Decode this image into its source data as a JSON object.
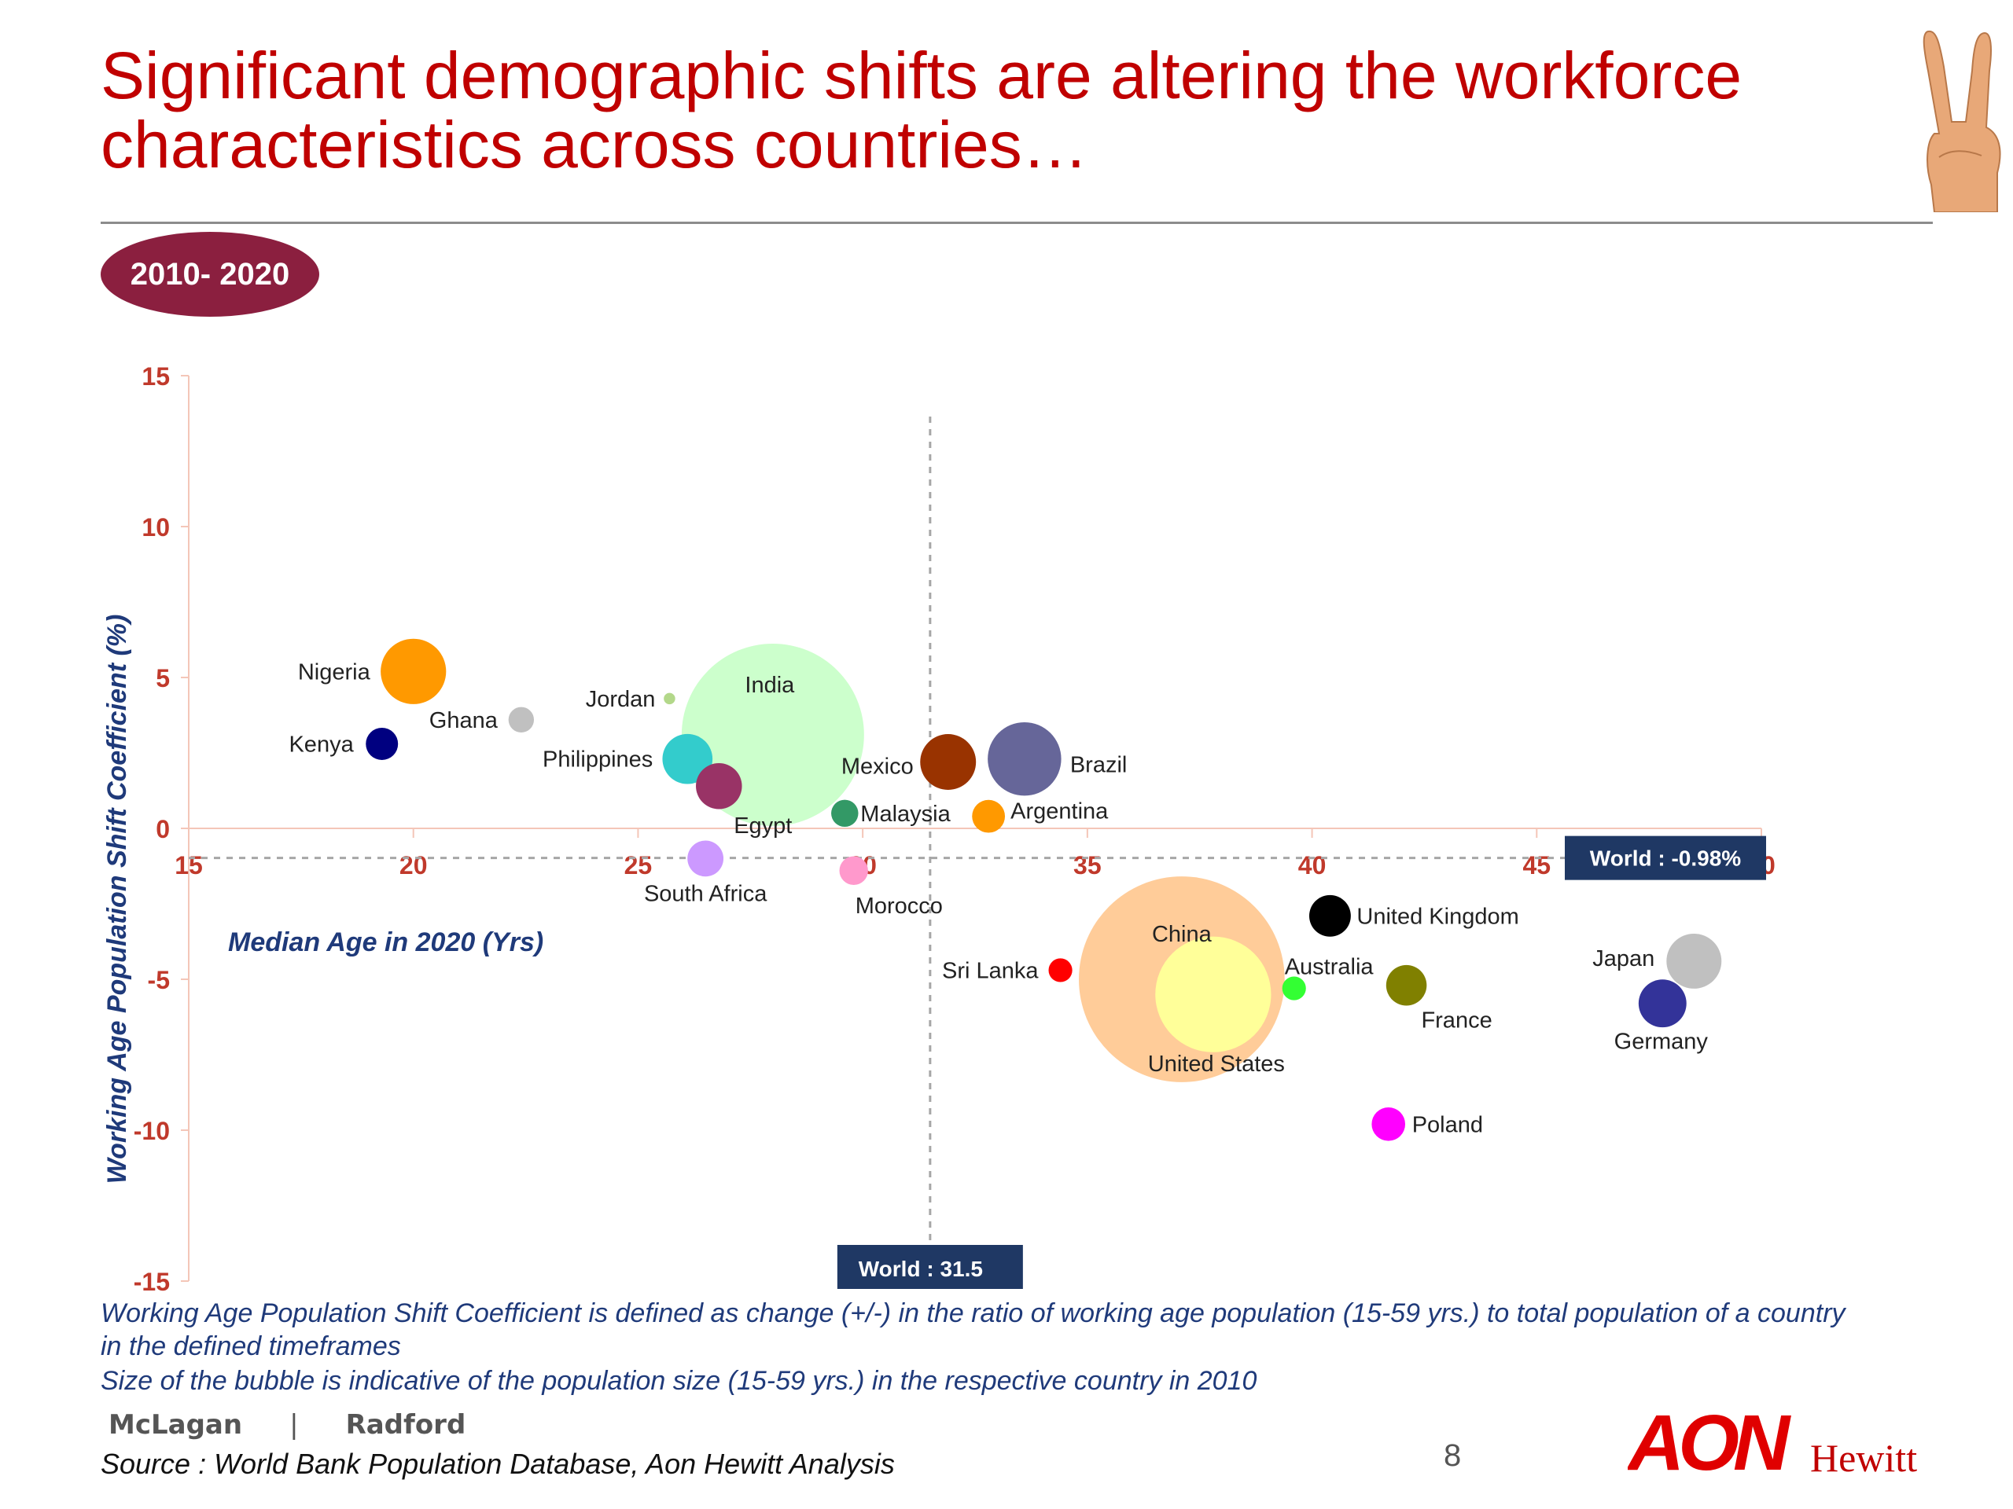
{
  "slide": {
    "title_line1": "Significant demographic shifts are altering the workforce",
    "title_line2": "characteristics across countries…",
    "period_badge": "2010- 2020",
    "note_line1": "Working Age Population Shift Coefficient is defined as change (+/-) in the ratio of working age population (15-59 yrs.) to total population of a country",
    "note_line2": "in the defined timeframes",
    "note_line3": "Size of the bubble is indicative of the population size (15-59 yrs.) in the respective country in 2010",
    "brand_left": "McLagan",
    "brand_separator": "|",
    "brand_right": "Radford",
    "source": "Source : World Bank Population Database, Aon Hewitt Analysis",
    "page_number": "8",
    "logo_main": "AON",
    "logo_sub": "Hewitt",
    "icon": "hand-peace-icon"
  },
  "colors": {
    "title": "#c00000",
    "badge": "#8b1f3f",
    "axis_tick": "#c0392b",
    "axis_title": "#1f3a7a",
    "reference_box": "#1f3864"
  },
  "chart_data": {
    "type": "bubble",
    "xlabel": "Median Age in 2020 (Yrs)",
    "ylabel": "Working Age Population Shift Coefficient (%)",
    "xlim": [
      15,
      50
    ],
    "ylim": [
      -15,
      15
    ],
    "xticks": [
      "15",
      "20",
      "25",
      "30",
      "35",
      "40",
      "45",
      "50"
    ],
    "yticks": [
      "15",
      "10",
      "5",
      "0",
      "-5",
      "-10",
      "-15"
    ],
    "reference_lines": [
      {
        "axis": "x",
        "value": 31.5,
        "label": "World : 31.5"
      },
      {
        "axis": "y",
        "value": -0.98,
        "label": "World : -0.98%"
      }
    ],
    "points": [
      {
        "label": "India",
        "x": 28.0,
        "y": 3.1,
        "size": 770,
        "color": "#ccffcc",
        "label_dx": -4,
        "label_dy": -64,
        "anchor": "middle"
      },
      {
        "label": "China",
        "x": 37.1,
        "y": -5.0,
        "size": 980,
        "color": "#ffcc99",
        "label_dx": 0,
        "label_dy": -58,
        "anchor": "middle"
      },
      {
        "label": "United States",
        "x": 37.8,
        "y": -5.5,
        "size": 310,
        "color": "#ffff99",
        "label_dx": 4,
        "label_dy": 88,
        "anchor": "middle"
      },
      {
        "label": "Nigeria",
        "x": 20.0,
        "y": 5.2,
        "size": 99,
        "color": "#ff9900",
        "label_dx": -55,
        "label_dy": 0,
        "anchor": "end"
      },
      {
        "label": "Ghana",
        "x": 22.4,
        "y": 3.6,
        "size": 15,
        "color": "#c0c0c0",
        "label_dx": -30,
        "label_dy": 0,
        "anchor": "end"
      },
      {
        "label": "Kenya",
        "x": 19.3,
        "y": 2.8,
        "size": 24,
        "color": "#000080",
        "label_dx": -36,
        "label_dy": 0,
        "anchor": "end"
      },
      {
        "label": "Jordan",
        "x": 25.7,
        "y": 4.3,
        "size": 3,
        "color": "#b3d88a",
        "label_dx": -18,
        "label_dy": 0,
        "anchor": "end"
      },
      {
        "label": "Philippines",
        "x": 26.1,
        "y": 2.3,
        "size": 58,
        "color": "#33cccc",
        "label_dx": -44,
        "label_dy": 0,
        "anchor": "end"
      },
      {
        "label": "Egypt",
        "x": 26.8,
        "y": 1.4,
        "size": 49,
        "color": "#993366",
        "label_dx": 56,
        "label_dy": 50,
        "anchor": "middle"
      },
      {
        "label": "South Africa",
        "x": 26.5,
        "y": -1.0,
        "size": 30,
        "color": "#cc99ff",
        "label_dx": 0,
        "label_dy": 44,
        "anchor": "middle"
      },
      {
        "label": "Mexico",
        "x": 31.9,
        "y": 2.2,
        "size": 72,
        "color": "#993300",
        "label_dx": -44,
        "label_dy": 5,
        "anchor": "end"
      },
      {
        "label": "Brazil",
        "x": 33.6,
        "y": 2.3,
        "size": 125,
        "color": "#666699",
        "label_dx": 58,
        "label_dy": 7,
        "anchor": "start"
      },
      {
        "label": "Malaysia",
        "x": 29.6,
        "y": 0.5,
        "size": 17,
        "color": "#339966",
        "label_dx": 20,
        "label_dy": 0,
        "anchor": "start"
      },
      {
        "label": "Argentina",
        "x": 32.8,
        "y": 0.4,
        "size": 25,
        "color": "#ff9900",
        "label_dx": 28,
        "label_dy": -7,
        "anchor": "start"
      },
      {
        "label": "Morocco",
        "x": 29.8,
        "y": -1.4,
        "size": 19,
        "color": "#ff99cc",
        "label_dx": 2,
        "label_dy": 44,
        "anchor": "start"
      },
      {
        "label": "Sri Lanka",
        "x": 34.4,
        "y": -4.7,
        "size": 13,
        "color": "#ff0000",
        "label_dx": -28,
        "label_dy": 0,
        "anchor": "end"
      },
      {
        "label": "Australia",
        "x": 39.6,
        "y": -5.3,
        "size": 13,
        "color": "#33ff33",
        "label_dx": -12,
        "label_dy": -28,
        "anchor": "start"
      },
      {
        "label": "United Kingdom",
        "x": 40.4,
        "y": -2.9,
        "size": 40,
        "color": "#000000",
        "label_dx": 34,
        "label_dy": 0,
        "anchor": "start"
      },
      {
        "label": "France",
        "x": 42.1,
        "y": -5.2,
        "size": 38,
        "color": "#808000",
        "label_dx": 64,
        "label_dy": 44,
        "anchor": "middle"
      },
      {
        "label": "Poland",
        "x": 41.7,
        "y": -9.8,
        "size": 26,
        "color": "#ff00ff",
        "label_dx": 30,
        "label_dy": 0,
        "anchor": "start"
      },
      {
        "label": "Japan",
        "x": 48.5,
        "y": -4.4,
        "size": 70,
        "color": "#c0c0c0",
        "label_dx": -50,
        "label_dy": -4,
        "anchor": "end"
      },
      {
        "label": "Germany",
        "x": 47.8,
        "y": -5.8,
        "size": 53,
        "color": "#333399",
        "label_dx": -2,
        "label_dy": 48,
        "anchor": "middle"
      }
    ]
  }
}
